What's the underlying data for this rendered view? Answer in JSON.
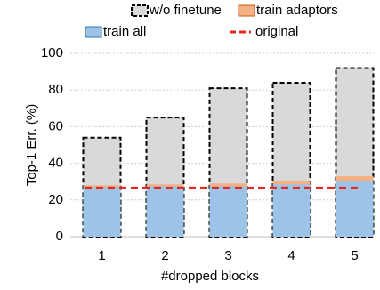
{
  "chart_data": {
    "type": "bar",
    "categories": [
      "1",
      "2",
      "3",
      "4",
      "5"
    ],
    "series": [
      {
        "name": "w/o finetune",
        "color": "#d9d9d9",
        "values": [
          54,
          65,
          81,
          84,
          92
        ]
      },
      {
        "name": "train adaptors",
        "color": "#f4b183",
        "values": [
          28,
          28.5,
          29,
          30.5,
          33
        ]
      },
      {
        "name": "train all",
        "color": "#9dc3e6",
        "values": [
          27,
          27.5,
          27.5,
          28.5,
          30
        ]
      }
    ],
    "reference_line": {
      "name": "original",
      "color": "#e8251f",
      "value": 26.5
    },
    "ylim": [
      0,
      100
    ],
    "yticks": [
      0,
      20,
      40,
      60,
      80,
      100
    ],
    "ylabel": "Top-1 Err. (%)",
    "xlabel": "#dropped blocks",
    "grid": true
  }
}
